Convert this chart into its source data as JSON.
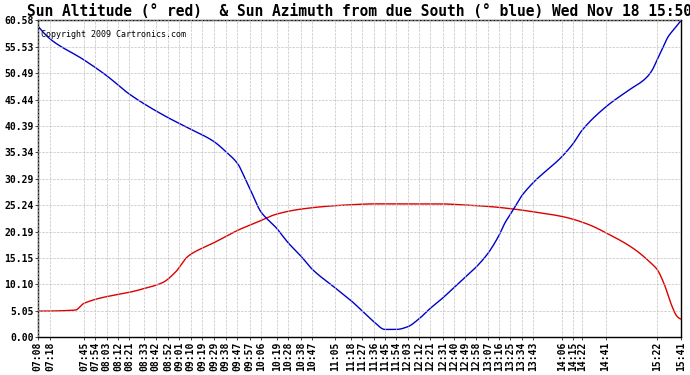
{
  "title": "Sun Altitude (° red)  & Sun Azimuth from due South (° blue) Wed Nov 18 15:50",
  "copyright": "Copyright 2009 Cartronics.com",
  "yticks": [
    0.0,
    5.05,
    10.1,
    15.15,
    20.19,
    25.24,
    30.29,
    35.34,
    40.39,
    45.44,
    50.49,
    55.53,
    60.58
  ],
  "ylim": [
    0.0,
    60.58
  ],
  "background_color": "#ffffff",
  "grid_color": "#bbbbbb",
  "red_color": "#dd0000",
  "blue_color": "#0000cc",
  "title_fontsize": 10.5,
  "tick_fontsize": 7,
  "xtick_labels": [
    "07:08",
    "07:18",
    "07:45",
    "07:54",
    "08:03",
    "08:12",
    "08:21",
    "08:33",
    "08:42",
    "08:52",
    "09:01",
    "09:10",
    "09:19",
    "09:29",
    "09:38",
    "09:47",
    "09:57",
    "10:06",
    "10:19",
    "10:28",
    "10:38",
    "10:47",
    "11:05",
    "11:18",
    "11:27",
    "11:36",
    "11:45",
    "11:54",
    "12:03",
    "12:12",
    "12:21",
    "12:31",
    "12:40",
    "12:49",
    "12:58",
    "13:07",
    "13:16",
    "13:25",
    "13:34",
    "13:43",
    "14:06",
    "14:15",
    "14:22",
    "14:41",
    "15:22",
    "15:41"
  ],
  "xtick_minutes": [
    0,
    10,
    37,
    46,
    55,
    64,
    73,
    85,
    94,
    104,
    113,
    122,
    131,
    141,
    150,
    159,
    169,
    178,
    191,
    200,
    210,
    219,
    237,
    250,
    259,
    268,
    277,
    286,
    295,
    304,
    313,
    323,
    332,
    341,
    350,
    359,
    368,
    377,
    386,
    395,
    418,
    427,
    434,
    453,
    494,
    513
  ]
}
